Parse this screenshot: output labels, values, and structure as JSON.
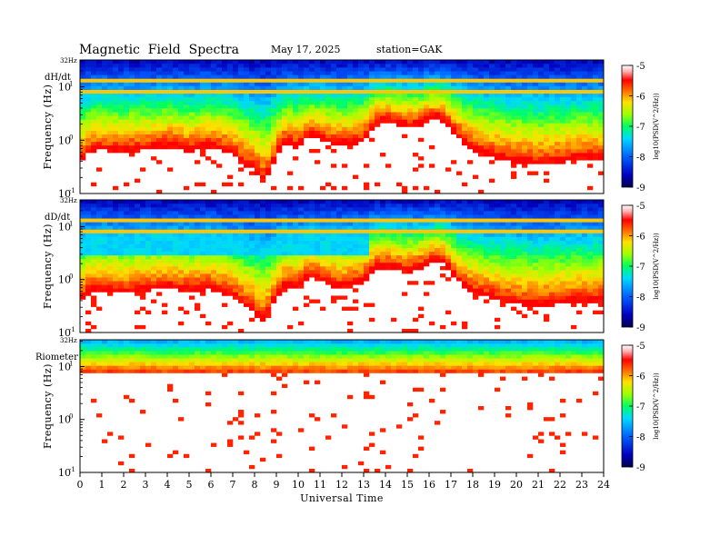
{
  "header": {
    "title": "Magnetic  Field  Spectra",
    "date": "May 17, 2025",
    "station": "station=GAK"
  },
  "colors": {
    "colormap": [
      "#000060",
      "#0000b0",
      "#0040ff",
      "#00c0ff",
      "#00ff80",
      "#80ff00",
      "#ffff00",
      "#ff8000",
      "#ff0000",
      "#ffffff"
    ],
    "background": "#ffffff"
  },
  "chart_data": [
    {
      "type": "heatmap",
      "panel_label": "dH/dt",
      "top_label": "32Hz",
      "ylabel": "Frequency  (Hz)",
      "y_scale": "log",
      "ylim": [
        0.1,
        32
      ],
      "y_ticks": [
        {
          "base": "10",
          "exp": "-1",
          "value": 0.1
        },
        {
          "base": "10",
          "exp": "0",
          "value": 1
        },
        {
          "base": "10",
          "exp": "1",
          "value": 10
        }
      ],
      "xlim": [
        0,
        24
      ],
      "colorbar": {
        "label": "log10(PSD(V^2/Hz))",
        "range": [
          -9,
          -5
        ],
        "ticks": [
          "-5",
          "-6",
          "-7",
          "-8",
          "-9"
        ]
      },
      "noise_floor_freq_hz": [
        [
          0,
          0.45
        ],
        [
          0.5,
          0.8
        ],
        [
          1,
          0.85
        ],
        [
          2,
          0.75
        ],
        [
          3,
          0.85
        ],
        [
          4,
          0.95
        ],
        [
          5,
          0.8
        ],
        [
          6,
          0.95
        ],
        [
          7,
          0.7
        ],
        [
          7.5,
          0.45
        ],
        [
          8,
          0.35
        ],
        [
          8.5,
          0.2
        ],
        [
          9,
          0.6
        ],
        [
          9.5,
          1.2
        ],
        [
          10,
          0.9
        ],
        [
          10.5,
          1.5
        ],
        [
          11,
          1.3
        ],
        [
          11.5,
          1.1
        ],
        [
          12,
          1.0
        ],
        [
          12.5,
          1.1
        ],
        [
          13,
          1.2
        ],
        [
          13.5,
          2.5
        ],
        [
          14,
          3.0
        ],
        [
          14.5,
          2.5
        ],
        [
          15,
          2.2
        ],
        [
          15.5,
          2.3
        ],
        [
          16,
          3.0
        ],
        [
          16.5,
          3.2
        ],
        [
          17,
          2.0
        ],
        [
          17.5,
          1.2
        ],
        [
          18,
          0.8
        ],
        [
          19,
          0.6
        ],
        [
          20,
          0.5
        ],
        [
          21,
          0.45
        ],
        [
          22,
          0.5
        ],
        [
          23,
          0.55
        ],
        [
          24,
          0.55
        ]
      ],
      "emission_bands_hz": [
        7.8,
        14.1
      ]
    },
    {
      "type": "heatmap",
      "panel_label": "dD/dt",
      "top_label": "32Hz",
      "ylabel": "Frequency  (Hz)",
      "y_scale": "log",
      "ylim": [
        0.1,
        32
      ],
      "y_ticks": [
        {
          "base": "10",
          "exp": "-1",
          "value": 0.1
        },
        {
          "base": "10",
          "exp": "0",
          "value": 1
        },
        {
          "base": "10",
          "exp": "1",
          "value": 10
        }
      ],
      "xlim": [
        0,
        24
      ],
      "colorbar": {
        "label": "log10(PSD(V^2/Hz))",
        "range": [
          -9,
          -5
        ],
        "ticks": [
          "-5",
          "-6",
          "-7",
          "-8",
          "-9"
        ]
      },
      "noise_floor_freq_hz": [
        [
          0,
          0.5
        ],
        [
          0.5,
          0.75
        ],
        [
          1,
          0.8
        ],
        [
          2,
          0.7
        ],
        [
          3,
          0.8
        ],
        [
          4,
          0.9
        ],
        [
          5,
          0.75
        ],
        [
          6,
          0.85
        ],
        [
          7,
          0.6
        ],
        [
          7.5,
          0.4
        ],
        [
          8,
          0.3
        ],
        [
          8.5,
          0.18
        ],
        [
          9,
          0.55
        ],
        [
          9.5,
          1.0
        ],
        [
          10,
          0.8
        ],
        [
          10.5,
          1.4
        ],
        [
          11,
          1.2
        ],
        [
          11.5,
          1.0
        ],
        [
          12,
          0.9
        ],
        [
          12.5,
          1.0
        ],
        [
          13,
          1.1
        ],
        [
          13.5,
          2.0
        ],
        [
          14,
          2.2
        ],
        [
          14.5,
          2.0
        ],
        [
          15,
          1.8
        ],
        [
          15.5,
          2.0
        ],
        [
          16,
          2.6
        ],
        [
          16.5,
          3.0
        ],
        [
          17,
          1.6
        ],
        [
          17.5,
          1.0
        ],
        [
          18,
          0.7
        ],
        [
          19,
          0.55
        ],
        [
          20,
          0.45
        ],
        [
          21,
          0.4
        ],
        [
          22,
          0.45
        ],
        [
          23,
          0.5
        ],
        [
          24,
          0.5
        ]
      ],
      "emission_bands_hz": [
        7.8,
        14.1
      ]
    },
    {
      "type": "heatmap",
      "panel_label": "Riometer",
      "top_label": "32Hz",
      "ylabel": "Frequency  (Hz)",
      "y_scale": "log",
      "ylim": [
        0.1,
        32
      ],
      "y_ticks": [
        {
          "base": "10",
          "exp": "-1",
          "value": 0.1
        },
        {
          "base": "10",
          "exp": "0",
          "value": 1
        },
        {
          "base": "10",
          "exp": "1",
          "value": 10
        }
      ],
      "xlim": [
        0,
        24
      ],
      "xlabel": "Universal  Time",
      "x_ticks": [
        "0",
        "1",
        "2",
        "3",
        "4",
        "5",
        "6",
        "7",
        "8",
        "9",
        "10",
        "11",
        "12",
        "13",
        "14",
        "15",
        "16",
        "17",
        "18",
        "19",
        "20",
        "21",
        "22",
        "23",
        "24"
      ],
      "colorbar": {
        "label": "log10(PSD(V^2/Hz))",
        "range": [
          -9,
          -5
        ],
        "ticks": [
          "-5",
          "-6",
          "-7",
          "-8",
          "-9"
        ]
      },
      "noise_floor_freq_hz": [
        [
          0,
          7.0
        ],
        [
          24,
          7.0
        ]
      ],
      "emission_bands_hz": []
    }
  ]
}
